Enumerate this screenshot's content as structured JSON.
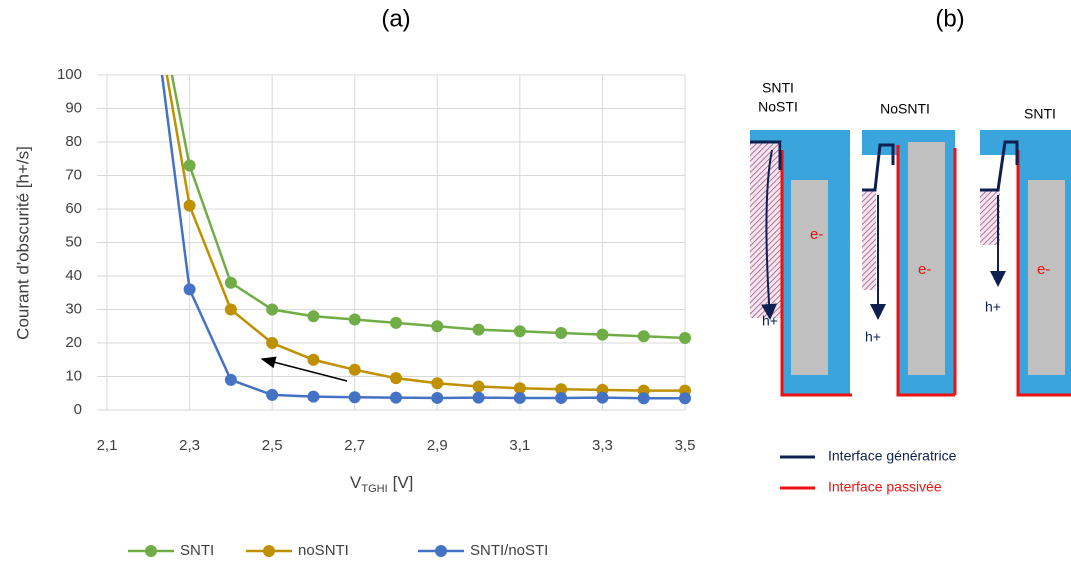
{
  "chart_data": {
    "type": "line",
    "title": "(a)",
    "y_label": "Courant d'obscurité [h+/s]",
    "x_label_main": "V",
    "x_label_subscript": "TGHI",
    "x_label_suffix": "[V]",
    "x": [
      2.2,
      2.3,
      2.4,
      2.5,
      2.6,
      2.7,
      2.8,
      2.9,
      3.0,
      3.1,
      3.2,
      3.3,
      3.4,
      3.5
    ],
    "series": [
      {
        "name": "SNTI",
        "color": "#70ad47",
        "values": [
          136,
          73,
          38,
          30,
          28,
          27,
          26,
          25,
          24,
          23.5,
          23,
          22.5,
          22,
          21.5
        ]
      },
      {
        "name": "noSNTI",
        "color": "#bf9000",
        "values": [
          132,
          61,
          30,
          20,
          15,
          12,
          9.5,
          8,
          7,
          6.5,
          6.2,
          6,
          5.8,
          5.8
        ]
      },
      {
        "name": "SNTI/noSTI",
        "color": "#4472c4",
        "values": [
          132,
          36,
          9,
          4.5,
          4,
          3.8,
          3.7,
          3.6,
          3.7,
          3.6,
          3.6,
          3.7,
          3.5,
          3.5
        ]
      }
    ],
    "xlim": [
      2.1,
      3.5
    ],
    "xticks": [
      {
        "value": 2.1,
        "label": "2,1"
      },
      {
        "value": 2.3,
        "label": "2,3"
      },
      {
        "value": 2.5,
        "label": "2,5"
      },
      {
        "value": 2.7,
        "label": "2,7"
      },
      {
        "value": 2.9,
        "label": "2,9"
      },
      {
        "value": 3.1,
        "label": "3,1"
      },
      {
        "value": 3.3,
        "label": "3,3"
      },
      {
        "value": 3.5,
        "label": "3,5"
      }
    ],
    "ylim": [
      0,
      100
    ],
    "yticks": [
      0,
      10,
      20,
      30,
      40,
      50,
      60,
      70,
      80,
      90,
      100
    ],
    "grid": true,
    "legend": "bottom"
  },
  "diagram": {
    "title": "(b)",
    "panel_labels": [
      "SNTI",
      "NoSTI",
      "NoSNTI",
      "SNTI"
    ],
    "electron_label": "e-",
    "hole_label": "h+",
    "legend": [
      "Interface génératrice",
      "Interface passivée"
    ]
  }
}
